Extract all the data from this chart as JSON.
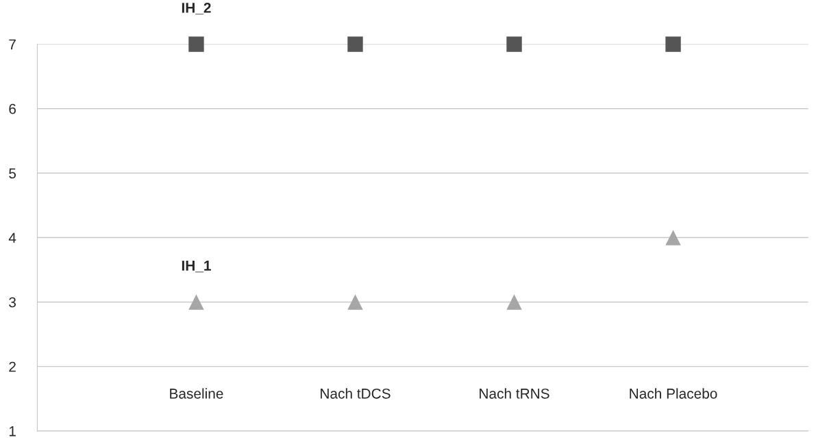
{
  "chart_data": {
    "type": "scatter",
    "categories": [
      "Baseline",
      "Nach tDCS",
      "Nach tRNS",
      "Nach Placebo"
    ],
    "series": [
      {
        "name": "IH_2",
        "color": "#555555",
        "marker": "square",
        "values": [
          7,
          7,
          7,
          7
        ]
      },
      {
        "name": "IH_1",
        "color": "#a6a6a6",
        "marker": "triangle",
        "values": [
          3,
          3,
          3,
          4
        ]
      }
    ],
    "ylim": [
      1,
      7
    ],
    "yticks": [
      1,
      2,
      3,
      4,
      5,
      6,
      7
    ],
    "grid": "y",
    "legend": false
  }
}
